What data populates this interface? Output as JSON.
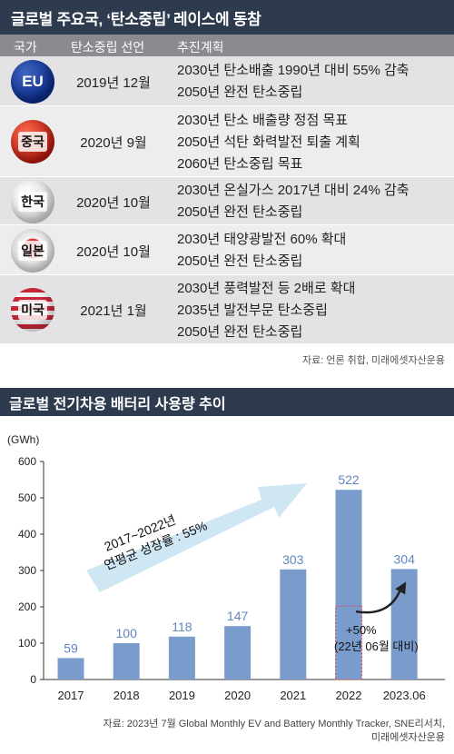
{
  "section1": {
    "title": "글로벌 주요국, ‘탄소중립’ 레이스에 동참",
    "headers": [
      "국가",
      "탄소중립 선언",
      "추진계획"
    ],
    "rows": [
      {
        "country": "EU",
        "declared": "2019년 12월",
        "plans": [
          "2030년 탄소배출 1990년 대비 55% 감축",
          "2050년 완전 탄소중립"
        ]
      },
      {
        "country": "중국",
        "declared": "2020년 9월",
        "plans": [
          "2030년 탄소 배출량 정점 목표",
          "2050년 석탄 화력발전 퇴출 계획",
          "2060년 탄소중립 목표"
        ]
      },
      {
        "country": "한국",
        "declared": "2020년 10월",
        "plans": [
          "2030년 온실가스 2017년 대비 24% 감축",
          "2050년 완전 탄소중립"
        ]
      },
      {
        "country": "일본",
        "declared": "2020년 10월",
        "plans": [
          "2030년 태양광발전 60% 확대",
          "2050년 완전 탄소중립"
        ]
      },
      {
        "country": "미국",
        "declared": "2021년 1월",
        "plans": [
          "2030년 풍력발전 등 2배로 확대",
          "2035년 발전부문 탄소중립",
          "2050년 완전 탄소중립"
        ]
      }
    ],
    "source": "자료: 언론 취합, 미래에셋자산운용"
  },
  "section2": {
    "title": "글로벌 전기차용 배터리 사용량 추이",
    "source_line1": "자료: 2023년 7월 Global Monthly EV and Battery Monthly Tracker, SNE리서치,",
    "source_line2": "미래에셋자산운용"
  },
  "chart_data": {
    "type": "bar",
    "unit_label": "(GWh)",
    "categories": [
      "2017",
      "2018",
      "2019",
      "2020",
      "2021",
      "2022",
      "2023.06"
    ],
    "values": [
      59,
      100,
      118,
      147,
      303,
      522,
      304
    ],
    "ylim": [
      0,
      600
    ],
    "yticks": [
      0,
      100,
      200,
      300,
      400,
      500,
      600
    ],
    "grid": false,
    "bar_color": "#7a9ccc",
    "label_color": "#5f86bf",
    "arrow_annotation": [
      "2017~2022년",
      "연평균 성장률 : 55%"
    ],
    "comparison_annotation": [
      "+50%",
      "(22년 06월 대비)"
    ],
    "comparison_reference": 202
  },
  "colors": {
    "banner": "#2e3a4e",
    "header_row": "#8a8a8f",
    "row_a": "#e3e3e6",
    "row_b": "#ededee",
    "arrow": "#cfe6f3"
  }
}
